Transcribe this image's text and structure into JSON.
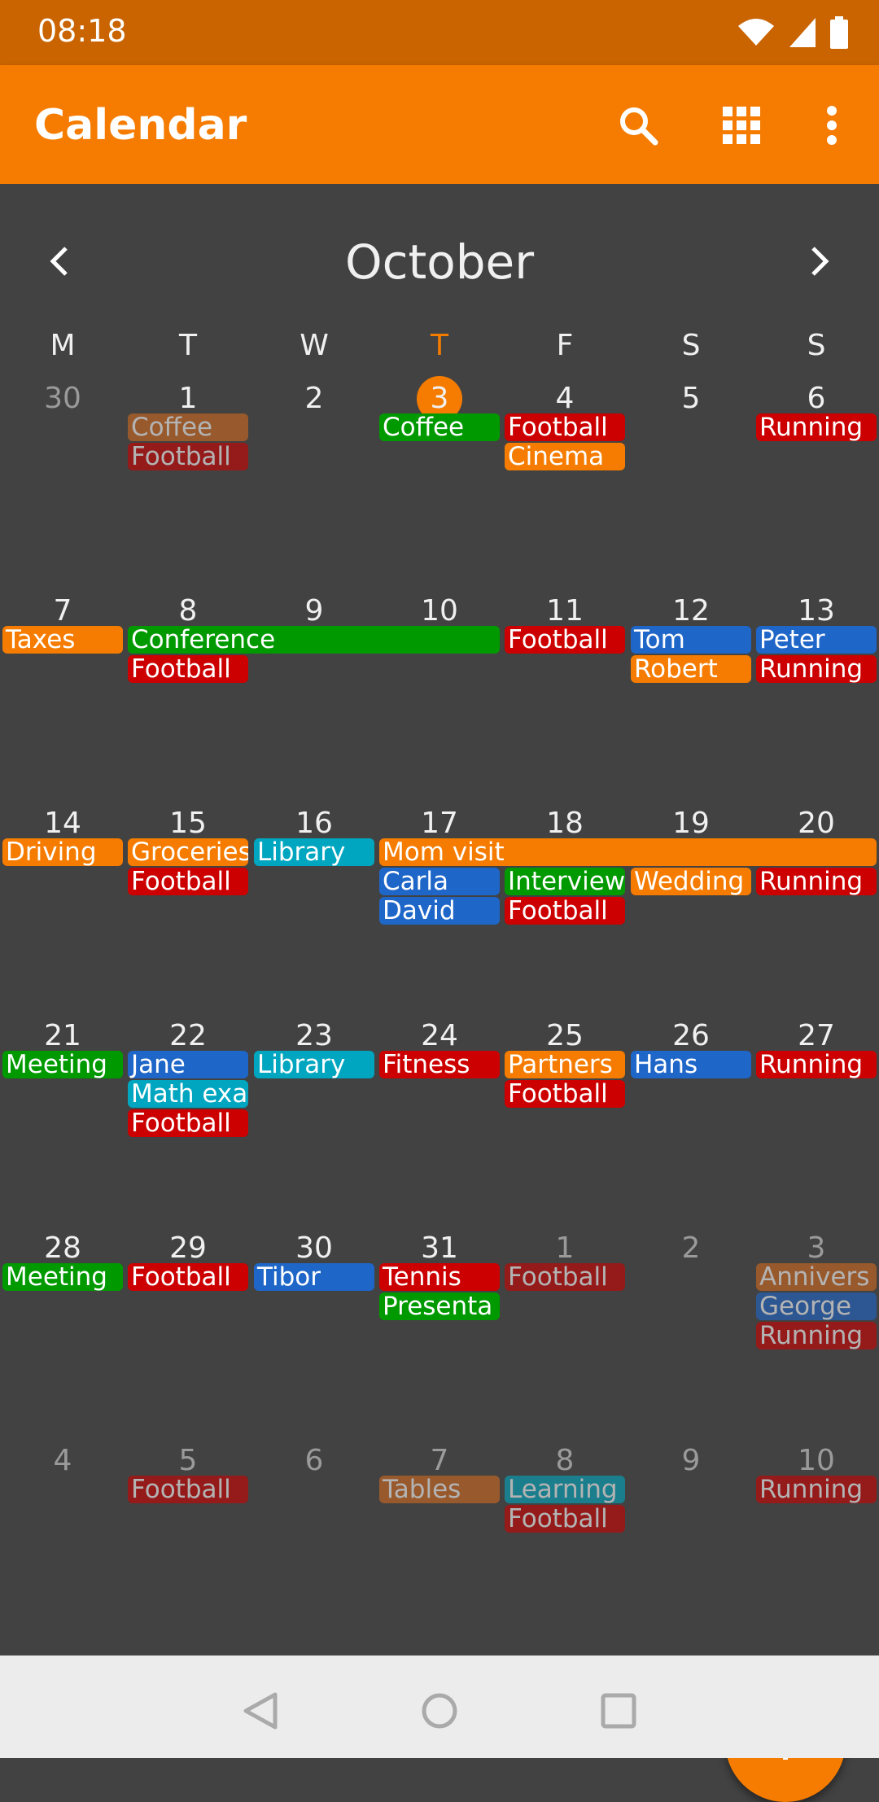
{
  "status": {
    "time": "08:18"
  },
  "app": {
    "title": "Calendar",
    "icons": [
      "search-icon",
      "grid-icon",
      "more-vert-icon"
    ]
  },
  "month": {
    "title": "October"
  },
  "weekdays": [
    "M",
    "T",
    "W",
    "T",
    "F",
    "S",
    "S"
  ],
  "weeks": [
    {
      "days": [
        {
          "n": "30",
          "other": true
        },
        {
          "n": "1"
        },
        {
          "n": "2"
        },
        {
          "n": "3",
          "today": true
        },
        {
          "n": "4"
        },
        {
          "n": "5"
        },
        {
          "n": "6"
        }
      ],
      "events": [
        {
          "col": 1,
          "span": 1,
          "row": 0,
          "label": "Coffee",
          "color": "#d2691e",
          "faded": true
        },
        {
          "col": 1,
          "span": 1,
          "row": 1,
          "label": "Football",
          "color": "#cc0000",
          "faded": true
        },
        {
          "col": 3,
          "span": 1,
          "row": 0,
          "label": "Coffee",
          "color": "#009a00"
        },
        {
          "col": 4,
          "span": 1,
          "row": 0,
          "label": "Football",
          "color": "#cc0000"
        },
        {
          "col": 4,
          "span": 1,
          "row": 1,
          "label": "Cinema",
          "color": "#f57c00"
        },
        {
          "col": 6,
          "span": 1,
          "row": 0,
          "label": "Running",
          "color": "#cc0000"
        }
      ]
    },
    {
      "days": [
        {
          "n": "7"
        },
        {
          "n": "8"
        },
        {
          "n": "9"
        },
        {
          "n": "10"
        },
        {
          "n": "11"
        },
        {
          "n": "12"
        },
        {
          "n": "13"
        }
      ],
      "events": [
        {
          "col": 0,
          "span": 1,
          "row": 0,
          "label": "Taxes",
          "color": "#f57c00"
        },
        {
          "col": 1,
          "span": 3,
          "row": 0,
          "label": "Conference",
          "color": "#009a00"
        },
        {
          "col": 1,
          "span": 1,
          "row": 1,
          "label": "Football",
          "color": "#cc0000"
        },
        {
          "col": 4,
          "span": 1,
          "row": 0,
          "label": "Football",
          "color": "#cc0000"
        },
        {
          "col": 5,
          "span": 1,
          "row": 0,
          "label": "Tom",
          "color": "#1e66c8"
        },
        {
          "col": 5,
          "span": 1,
          "row": 1,
          "label": "Robert",
          "color": "#f57c00"
        },
        {
          "col": 6,
          "span": 1,
          "row": 0,
          "label": "Peter",
          "color": "#1e66c8"
        },
        {
          "col": 6,
          "span": 1,
          "row": 1,
          "label": "Running",
          "color": "#cc0000"
        }
      ]
    },
    {
      "days": [
        {
          "n": "14"
        },
        {
          "n": "15"
        },
        {
          "n": "16"
        },
        {
          "n": "17"
        },
        {
          "n": "18"
        },
        {
          "n": "19"
        },
        {
          "n": "20"
        }
      ],
      "events": [
        {
          "col": 0,
          "span": 1,
          "row": 0,
          "label": "Driving",
          "color": "#f57c00"
        },
        {
          "col": 1,
          "span": 1,
          "row": 0,
          "label": "Groceries",
          "color": "#f57c00"
        },
        {
          "col": 1,
          "span": 1,
          "row": 1,
          "label": "Football",
          "color": "#cc0000"
        },
        {
          "col": 2,
          "span": 1,
          "row": 0,
          "label": "Library",
          "color": "#00a6c0"
        },
        {
          "col": 3,
          "span": 4,
          "row": 0,
          "label": "Mom visit",
          "color": "#f57c00"
        },
        {
          "col": 3,
          "span": 1,
          "row": 1,
          "label": "Carla",
          "color": "#1e66c8"
        },
        {
          "col": 3,
          "span": 1,
          "row": 2,
          "label": "David",
          "color": "#1e66c8"
        },
        {
          "col": 4,
          "span": 1,
          "row": 1,
          "label": "Interview",
          "color": "#009a00"
        },
        {
          "col": 4,
          "span": 1,
          "row": 2,
          "label": "Football",
          "color": "#cc0000"
        },
        {
          "col": 5,
          "span": 1,
          "row": 1,
          "label": "Wedding",
          "color": "#f57c00"
        },
        {
          "col": 6,
          "span": 1,
          "row": 1,
          "label": "Running",
          "color": "#cc0000"
        }
      ]
    },
    {
      "days": [
        {
          "n": "21"
        },
        {
          "n": "22"
        },
        {
          "n": "23"
        },
        {
          "n": "24"
        },
        {
          "n": "25"
        },
        {
          "n": "26"
        },
        {
          "n": "27"
        }
      ],
      "events": [
        {
          "col": 0,
          "span": 1,
          "row": 0,
          "label": "Meeting",
          "color": "#009a00"
        },
        {
          "col": 1,
          "span": 1,
          "row": 0,
          "label": "Jane",
          "color": "#1e66c8"
        },
        {
          "col": 1,
          "span": 1,
          "row": 1,
          "label": "Math exa",
          "color": "#00a6c0"
        },
        {
          "col": 1,
          "span": 1,
          "row": 2,
          "label": "Football",
          "color": "#cc0000"
        },
        {
          "col": 2,
          "span": 1,
          "row": 0,
          "label": "Library",
          "color": "#00a6c0"
        },
        {
          "col": 3,
          "span": 1,
          "row": 0,
          "label": "Fitness",
          "color": "#cc0000"
        },
        {
          "col": 4,
          "span": 1,
          "row": 0,
          "label": "Partners",
          "color": "#f57c00"
        },
        {
          "col": 4,
          "span": 1,
          "row": 1,
          "label": "Football",
          "color": "#cc0000"
        },
        {
          "col": 5,
          "span": 1,
          "row": 0,
          "label": "Hans",
          "color": "#1e66c8"
        },
        {
          "col": 6,
          "span": 1,
          "row": 0,
          "label": "Running",
          "color": "#cc0000"
        }
      ]
    },
    {
      "days": [
        {
          "n": "28"
        },
        {
          "n": "29"
        },
        {
          "n": "30"
        },
        {
          "n": "31"
        },
        {
          "n": "1",
          "other": true
        },
        {
          "n": "2",
          "other": true
        },
        {
          "n": "3",
          "other": true
        }
      ],
      "events": [
        {
          "col": 0,
          "span": 1,
          "row": 0,
          "label": "Meeting",
          "color": "#009a00"
        },
        {
          "col": 1,
          "span": 1,
          "row": 0,
          "label": "Football",
          "color": "#cc0000"
        },
        {
          "col": 2,
          "span": 1,
          "row": 0,
          "label": "Tibor",
          "color": "#1e66c8"
        },
        {
          "col": 3,
          "span": 1,
          "row": 0,
          "label": "Tennis",
          "color": "#cc0000"
        },
        {
          "col": 3,
          "span": 1,
          "row": 1,
          "label": "Presenta",
          "color": "#009a00"
        },
        {
          "col": 4,
          "span": 1,
          "row": 0,
          "label": "Football",
          "color": "#cc0000",
          "faded": true
        },
        {
          "col": 6,
          "span": 1,
          "row": 0,
          "label": "Annivers",
          "color": "#d2691e",
          "faded": true
        },
        {
          "col": 6,
          "span": 1,
          "row": 1,
          "label": "George",
          "color": "#1e66c8",
          "faded": true
        },
        {
          "col": 6,
          "span": 1,
          "row": 2,
          "label": "Running",
          "color": "#cc0000",
          "faded": true
        }
      ]
    },
    {
      "days": [
        {
          "n": "4",
          "other": true
        },
        {
          "n": "5",
          "other": true
        },
        {
          "n": "6",
          "other": true
        },
        {
          "n": "7",
          "other": true
        },
        {
          "n": "8",
          "other": true
        },
        {
          "n": "9",
          "other": true
        },
        {
          "n": "10",
          "other": true
        }
      ],
      "events": [
        {
          "col": 1,
          "span": 1,
          "row": 0,
          "label": "Football",
          "color": "#cc0000",
          "faded": true
        },
        {
          "col": 3,
          "span": 1,
          "row": 0,
          "label": "Tables",
          "color": "#d2691e",
          "faded": true
        },
        {
          "col": 4,
          "span": 1,
          "row": 0,
          "label": "Learning",
          "color": "#00a6c0",
          "faded": true
        },
        {
          "col": 4,
          "span": 1,
          "row": 1,
          "label": "Football",
          "color": "#cc0000",
          "faded": true
        },
        {
          "col": 6,
          "span": 1,
          "row": 0,
          "label": "Running",
          "color": "#cc0000",
          "faded": true
        }
      ]
    }
  ],
  "fab": {
    "icon": "plus-icon"
  },
  "navbar": {
    "icons": [
      "back-icon",
      "home-icon",
      "recents-icon"
    ]
  }
}
